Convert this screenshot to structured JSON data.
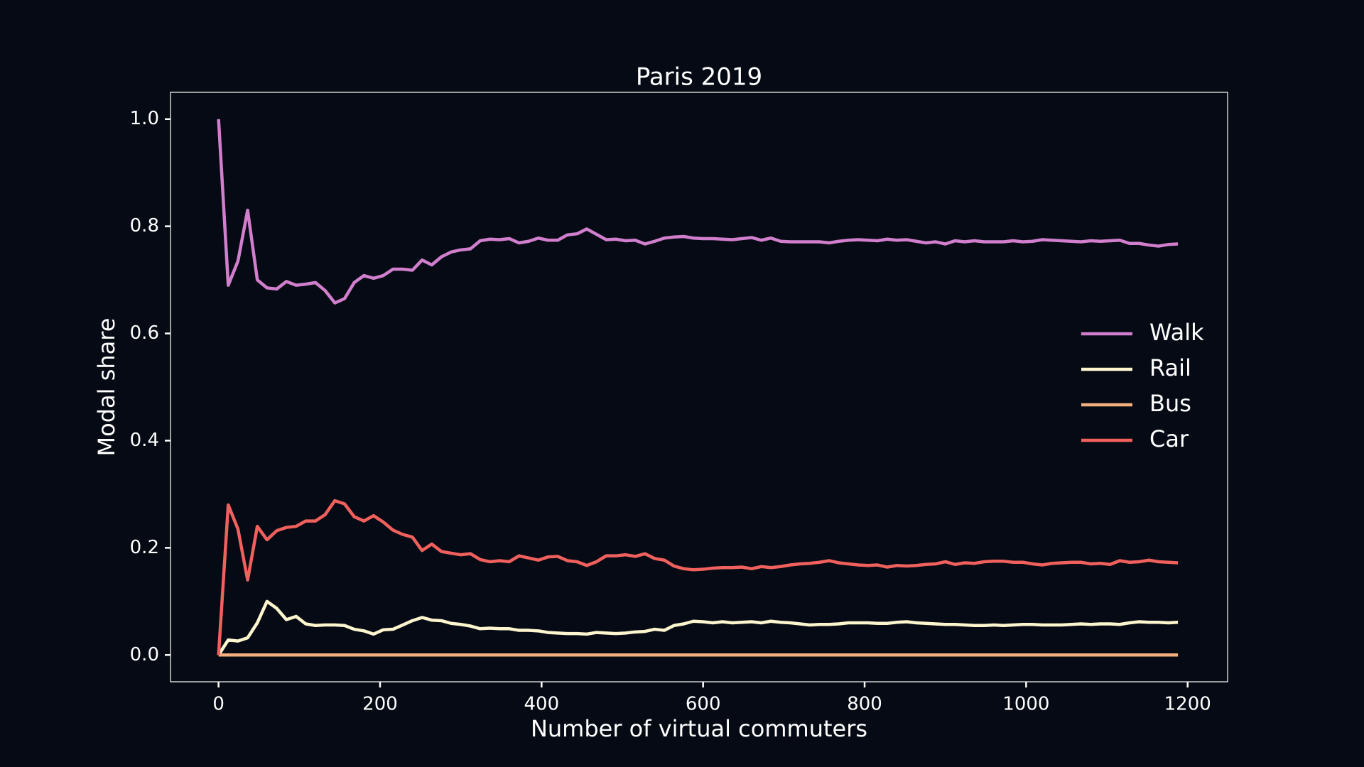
{
  "chart_data": {
    "type": "line",
    "title": "Paris 2019",
    "xlabel": "Number of virtual commuters",
    "ylabel": "Modal share",
    "x": [
      0,
      12,
      24,
      36,
      48,
      60,
      72,
      84,
      96,
      108,
      120,
      132,
      144,
      156,
      168,
      180,
      192,
      204,
      216,
      228,
      240,
      252,
      264,
      276,
      288,
      300,
      312,
      324,
      336,
      348,
      360,
      372,
      384,
      396,
      408,
      420,
      432,
      444,
      456,
      468,
      480,
      492,
      504,
      516,
      528,
      540,
      552,
      564,
      576,
      588,
      600,
      612,
      624,
      636,
      648,
      660,
      672,
      684,
      696,
      708,
      720,
      732,
      744,
      756,
      768,
      780,
      792,
      804,
      816,
      828,
      840,
      852,
      864,
      876,
      888,
      900,
      912,
      924,
      936,
      948,
      960,
      972,
      984,
      996,
      1008,
      1020,
      1032,
      1044,
      1056,
      1068,
      1080,
      1092,
      1104,
      1116,
      1128,
      1140,
      1152,
      1164,
      1176,
      1188
    ],
    "series": [
      {
        "name": "Walk",
        "color": "#d17fcd",
        "values": [
          1.0,
          0.69,
          0.735,
          0.83,
          0.7,
          0.685,
          0.683,
          0.697,
          0.69,
          0.692,
          0.695,
          0.68,
          0.657,
          0.665,
          0.695,
          0.708,
          0.703,
          0.708,
          0.72,
          0.72,
          0.718,
          0.737,
          0.728,
          0.743,
          0.752,
          0.756,
          0.758,
          0.773,
          0.776,
          0.775,
          0.777,
          0.769,
          0.772,
          0.778,
          0.774,
          0.774,
          0.784,
          0.786,
          0.795,
          0.785,
          0.775,
          0.776,
          0.773,
          0.774,
          0.767,
          0.772,
          0.778,
          0.78,
          0.781,
          0.778,
          0.777,
          0.777,
          0.776,
          0.775,
          0.777,
          0.779,
          0.774,
          0.778,
          0.772,
          0.771,
          0.771,
          0.771,
          0.771,
          0.769,
          0.772,
          0.774,
          0.775,
          0.774,
          0.773,
          0.776,
          0.774,
          0.775,
          0.772,
          0.769,
          0.771,
          0.767,
          0.773,
          0.771,
          0.773,
          0.771,
          0.771,
          0.771,
          0.773,
          0.771,
          0.772,
          0.775,
          0.774,
          0.773,
          0.772,
          0.771,
          0.773,
          0.772,
          0.773,
          0.774,
          0.768,
          0.768,
          0.765,
          0.763,
          0.766,
          0.767
        ]
      },
      {
        "name": "Rail",
        "color": "#fcf5cd",
        "values": [
          0.0,
          0.028,
          0.026,
          0.032,
          0.06,
          0.1,
          0.087,
          0.066,
          0.072,
          0.058,
          0.055,
          0.056,
          0.056,
          0.055,
          0.048,
          0.045,
          0.039,
          0.047,
          0.048,
          0.056,
          0.064,
          0.07,
          0.065,
          0.064,
          0.059,
          0.057,
          0.054,
          0.049,
          0.05,
          0.049,
          0.049,
          0.046,
          0.046,
          0.045,
          0.042,
          0.041,
          0.04,
          0.04,
          0.039,
          0.042,
          0.041,
          0.04,
          0.041,
          0.043,
          0.044,
          0.048,
          0.046,
          0.055,
          0.058,
          0.063,
          0.062,
          0.06,
          0.062,
          0.06,
          0.061,
          0.062,
          0.06,
          0.063,
          0.061,
          0.06,
          0.058,
          0.056,
          0.057,
          0.057,
          0.058,
          0.06,
          0.06,
          0.06,
          0.059,
          0.059,
          0.061,
          0.062,
          0.06,
          0.059,
          0.058,
          0.057,
          0.057,
          0.056,
          0.055,
          0.055,
          0.056,
          0.055,
          0.056,
          0.057,
          0.057,
          0.056,
          0.056,
          0.056,
          0.057,
          0.058,
          0.057,
          0.058,
          0.058,
          0.057,
          0.06,
          0.062,
          0.061,
          0.061,
          0.06,
          0.061
        ]
      },
      {
        "name": "Bus",
        "color": "#f2b07e",
        "values": [
          0,
          0,
          0,
          0,
          0,
          0,
          0,
          0,
          0,
          0,
          0,
          0,
          0,
          0,
          0,
          0,
          0,
          0,
          0,
          0,
          0,
          0,
          0,
          0,
          0,
          0,
          0,
          0,
          0,
          0,
          0,
          0,
          0,
          0,
          0,
          0,
          0,
          0,
          0,
          0,
          0,
          0,
          0,
          0,
          0,
          0,
          0,
          0,
          0,
          0,
          0,
          0,
          0,
          0,
          0,
          0,
          0,
          0,
          0,
          0,
          0,
          0,
          0,
          0,
          0,
          0,
          0,
          0,
          0,
          0,
          0,
          0,
          0,
          0,
          0,
          0,
          0,
          0,
          0,
          0,
          0,
          0,
          0,
          0,
          0,
          0,
          0,
          0,
          0,
          0,
          0,
          0,
          0,
          0,
          0,
          0,
          0,
          0,
          0,
          0
        ]
      },
      {
        "name": "Car",
        "color": "#f0605d",
        "values": [
          0.0,
          0.28,
          0.235,
          0.14,
          0.24,
          0.215,
          0.232,
          0.238,
          0.24,
          0.25,
          0.25,
          0.262,
          0.288,
          0.282,
          0.258,
          0.25,
          0.26,
          0.248,
          0.233,
          0.225,
          0.22,
          0.195,
          0.207,
          0.193,
          0.19,
          0.187,
          0.189,
          0.178,
          0.174,
          0.176,
          0.174,
          0.185,
          0.181,
          0.177,
          0.183,
          0.184,
          0.176,
          0.174,
          0.167,
          0.174,
          0.185,
          0.185,
          0.187,
          0.184,
          0.189,
          0.18,
          0.177,
          0.166,
          0.161,
          0.159,
          0.16,
          0.162,
          0.163,
          0.163,
          0.164,
          0.161,
          0.165,
          0.163,
          0.165,
          0.168,
          0.17,
          0.171,
          0.173,
          0.176,
          0.172,
          0.17,
          0.168,
          0.167,
          0.168,
          0.164,
          0.167,
          0.166,
          0.167,
          0.169,
          0.17,
          0.174,
          0.169,
          0.172,
          0.171,
          0.174,
          0.175,
          0.175,
          0.173,
          0.173,
          0.17,
          0.168,
          0.171,
          0.172,
          0.173,
          0.173,
          0.17,
          0.171,
          0.169,
          0.176,
          0.173,
          0.174,
          0.177,
          0.174,
          0.173,
          0.172
        ]
      }
    ],
    "xlim": [
      -59.5,
      1249.5
    ],
    "xticks": [
      0,
      200,
      400,
      600,
      800,
      1000,
      1200
    ],
    "ylim": [
      -0.05,
      1.05
    ],
    "yticks": [
      {
        "value": 0,
        "label": "0.0"
      },
      0.2,
      0.4,
      0.6,
      0.8,
      {
        "value": 1,
        "label": "1.0"
      }
    ],
    "grid": false,
    "legend": "center right"
  }
}
